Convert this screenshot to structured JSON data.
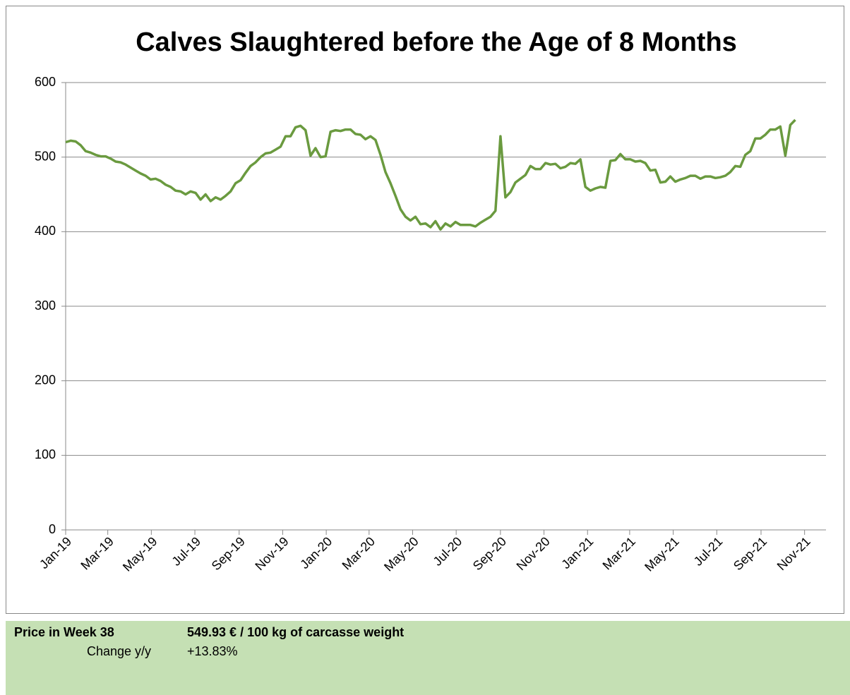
{
  "chart_data": {
    "type": "line",
    "title": "Calves Slaughtered before the Age of 8 Months",
    "x": [
      0,
      7,
      14,
      21,
      28,
      35,
      42,
      49,
      56,
      63,
      70,
      77,
      84,
      91,
      98,
      105,
      112,
      119,
      126,
      133,
      140,
      147,
      154,
      161,
      168,
      175,
      182,
      189,
      196,
      203,
      210,
      217,
      224,
      231,
      238,
      245,
      252,
      259,
      266,
      273,
      280,
      287,
      294,
      301,
      308,
      315,
      322,
      329,
      336,
      343,
      350,
      357,
      364,
      371,
      378,
      385,
      392,
      399,
      406,
      413,
      420,
      427,
      434,
      441,
      448,
      455,
      462,
      469,
      476,
      483,
      490,
      497,
      504,
      511,
      518,
      525,
      532,
      539,
      546,
      553,
      560,
      567,
      574,
      581,
      588,
      595,
      602,
      609,
      616,
      623,
      630,
      637,
      644,
      651,
      658,
      665,
      672,
      679,
      686,
      693,
      700,
      707,
      714,
      721,
      728,
      735,
      742,
      749,
      756,
      763,
      770,
      777,
      784,
      791,
      798,
      805,
      812,
      819,
      826,
      833,
      840,
      847,
      854,
      861,
      868,
      875,
      882,
      889,
      896,
      903,
      910,
      917,
      924,
      931,
      938,
      945,
      952,
      959,
      966,
      973,
      980,
      987,
      994,
      1001,
      1008,
      1015,
      1022
    ],
    "series": [
      {
        "color": "#6a9a3f",
        "values": [
          520,
          522,
          521,
          516,
          508,
          506,
          503,
          501,
          501,
          498,
          494,
          493,
          490,
          486,
          482,
          478,
          475,
          470,
          471,
          468,
          463,
          460,
          455,
          454,
          450,
          454,
          452,
          443,
          450,
          441,
          446,
          443,
          448,
          454,
          465,
          469,
          479,
          488,
          493,
          500,
          505,
          506,
          510,
          514,
          528,
          528,
          540,
          542,
          536,
          502,
          512,
          500,
          501,
          534,
          536,
          535,
          537,
          537,
          531,
          530,
          524,
          528,
          523,
          503,
          480,
          465,
          448,
          430,
          420,
          415,
          420,
          410,
          411,
          406,
          414,
          403,
          411,
          407,
          413,
          409,
          409,
          409,
          407,
          412,
          416,
          420,
          428,
          528,
          446,
          453,
          466,
          471,
          476,
          488,
          484,
          484,
          492,
          490,
          491,
          485,
          487,
          492,
          491,
          497,
          460,
          455,
          458,
          460,
          459,
          495,
          496,
          504,
          497,
          497,
          494,
          495,
          492,
          482,
          483,
          466,
          467,
          474,
          467,
          470,
          472,
          475,
          475,
          471,
          474,
          474,
          472,
          473,
          475,
          480,
          488,
          487,
          503,
          508,
          525,
          525,
          530,
          537,
          537,
          541,
          502,
          543,
          549.93
        ]
      }
    ],
    "xlim": [
      0,
      1065
    ],
    "xticks": [
      {
        "value": 0,
        "label": "Jan-19"
      },
      {
        "value": 59,
        "label": "Mar-19"
      },
      {
        "value": 120,
        "label": "May-19"
      },
      {
        "value": 181,
        "label": "Jul-19"
      },
      {
        "value": 243,
        "label": "Sep-19"
      },
      {
        "value": 304,
        "label": "Nov-19"
      },
      {
        "value": 365,
        "label": "Jan-20"
      },
      {
        "value": 425,
        "label": "Mar-20"
      },
      {
        "value": 486,
        "label": "May-20"
      },
      {
        "value": 547,
        "label": "Jul-20"
      },
      {
        "value": 609,
        "label": "Sep-20"
      },
      {
        "value": 670,
        "label": "Nov-20"
      },
      {
        "value": 731,
        "label": "Jan-21"
      },
      {
        "value": 790,
        "label": "Mar-21"
      },
      {
        "value": 851,
        "label": "May-21"
      },
      {
        "value": 912,
        "label": "Jul-21"
      },
      {
        "value": 974,
        "label": "Sep-21"
      },
      {
        "value": 1035,
        "label": "Nov-21"
      }
    ],
    "ylim": [
      0,
      600
    ],
    "yticks": [
      0,
      100,
      200,
      300,
      400,
      500,
      600
    ],
    "grid": true
  },
  "panel": {
    "label": "Price in Week 38",
    "value": "549.93 € / 100 kg of carcasse weight",
    "change_label": "Change y/y",
    "change_value": "+13.83%"
  }
}
